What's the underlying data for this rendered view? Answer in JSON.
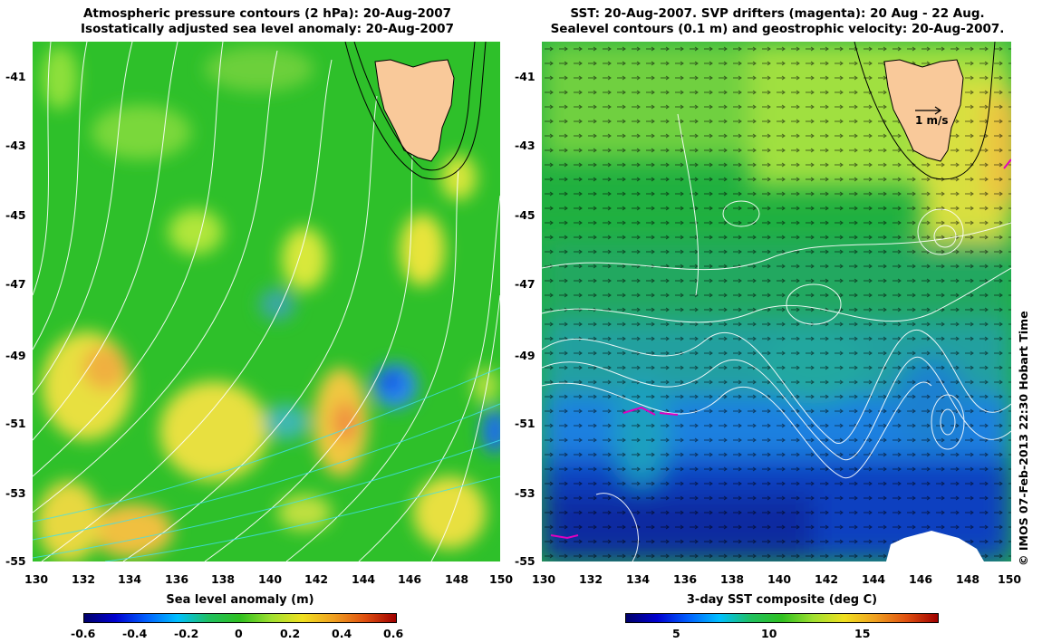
{
  "left_panel": {
    "title_line1": "Atmospheric pressure contours (2 hPa): 20-Aug-2007",
    "title_line2": "Isostatically adjusted sea level anomaly: 20-Aug-2007",
    "x_ticks": [
      "130",
      "132",
      "134",
      "136",
      "138",
      "140",
      "142",
      "144",
      "146",
      "148",
      "150"
    ],
    "y_ticks": [
      "-41",
      "-43",
      "-45",
      "-47",
      "-49",
      "-51",
      "-53",
      "-55"
    ],
    "colorbar_label": "Sea level anomaly (m)",
    "colorbar_ticks": [
      "-0.6",
      "-0.4",
      "-0.2",
      "0",
      "0.2",
      "0.4",
      "0.6"
    ]
  },
  "right_panel": {
    "title_line1": "SST: 20-Aug-2007. SVP drifters (magenta): 20 Aug - 22 Aug.",
    "title_line2": "Sealevel contours (0.1 m) and geostrophic velocity: 20-Aug-2007.",
    "x_ticks": [
      "130",
      "132",
      "134",
      "136",
      "138",
      "140",
      "142",
      "144",
      "146",
      "148",
      "150"
    ],
    "y_ticks": [
      "-41",
      "-43",
      "-45",
      "-47",
      "-49",
      "-51",
      "-53",
      "-55"
    ],
    "scale_label": "1 m/s",
    "colorbar_label": "3-day SST composite (deg C)",
    "colorbar_ticks": [
      "5",
      "10",
      "15"
    ]
  },
  "credit": "© IMOS 07-Feb-2013 22:30 Hobart Time",
  "colors": {
    "land": "#f9c99a",
    "contour": "#ffffff",
    "drifter": "#e000c0"
  }
}
